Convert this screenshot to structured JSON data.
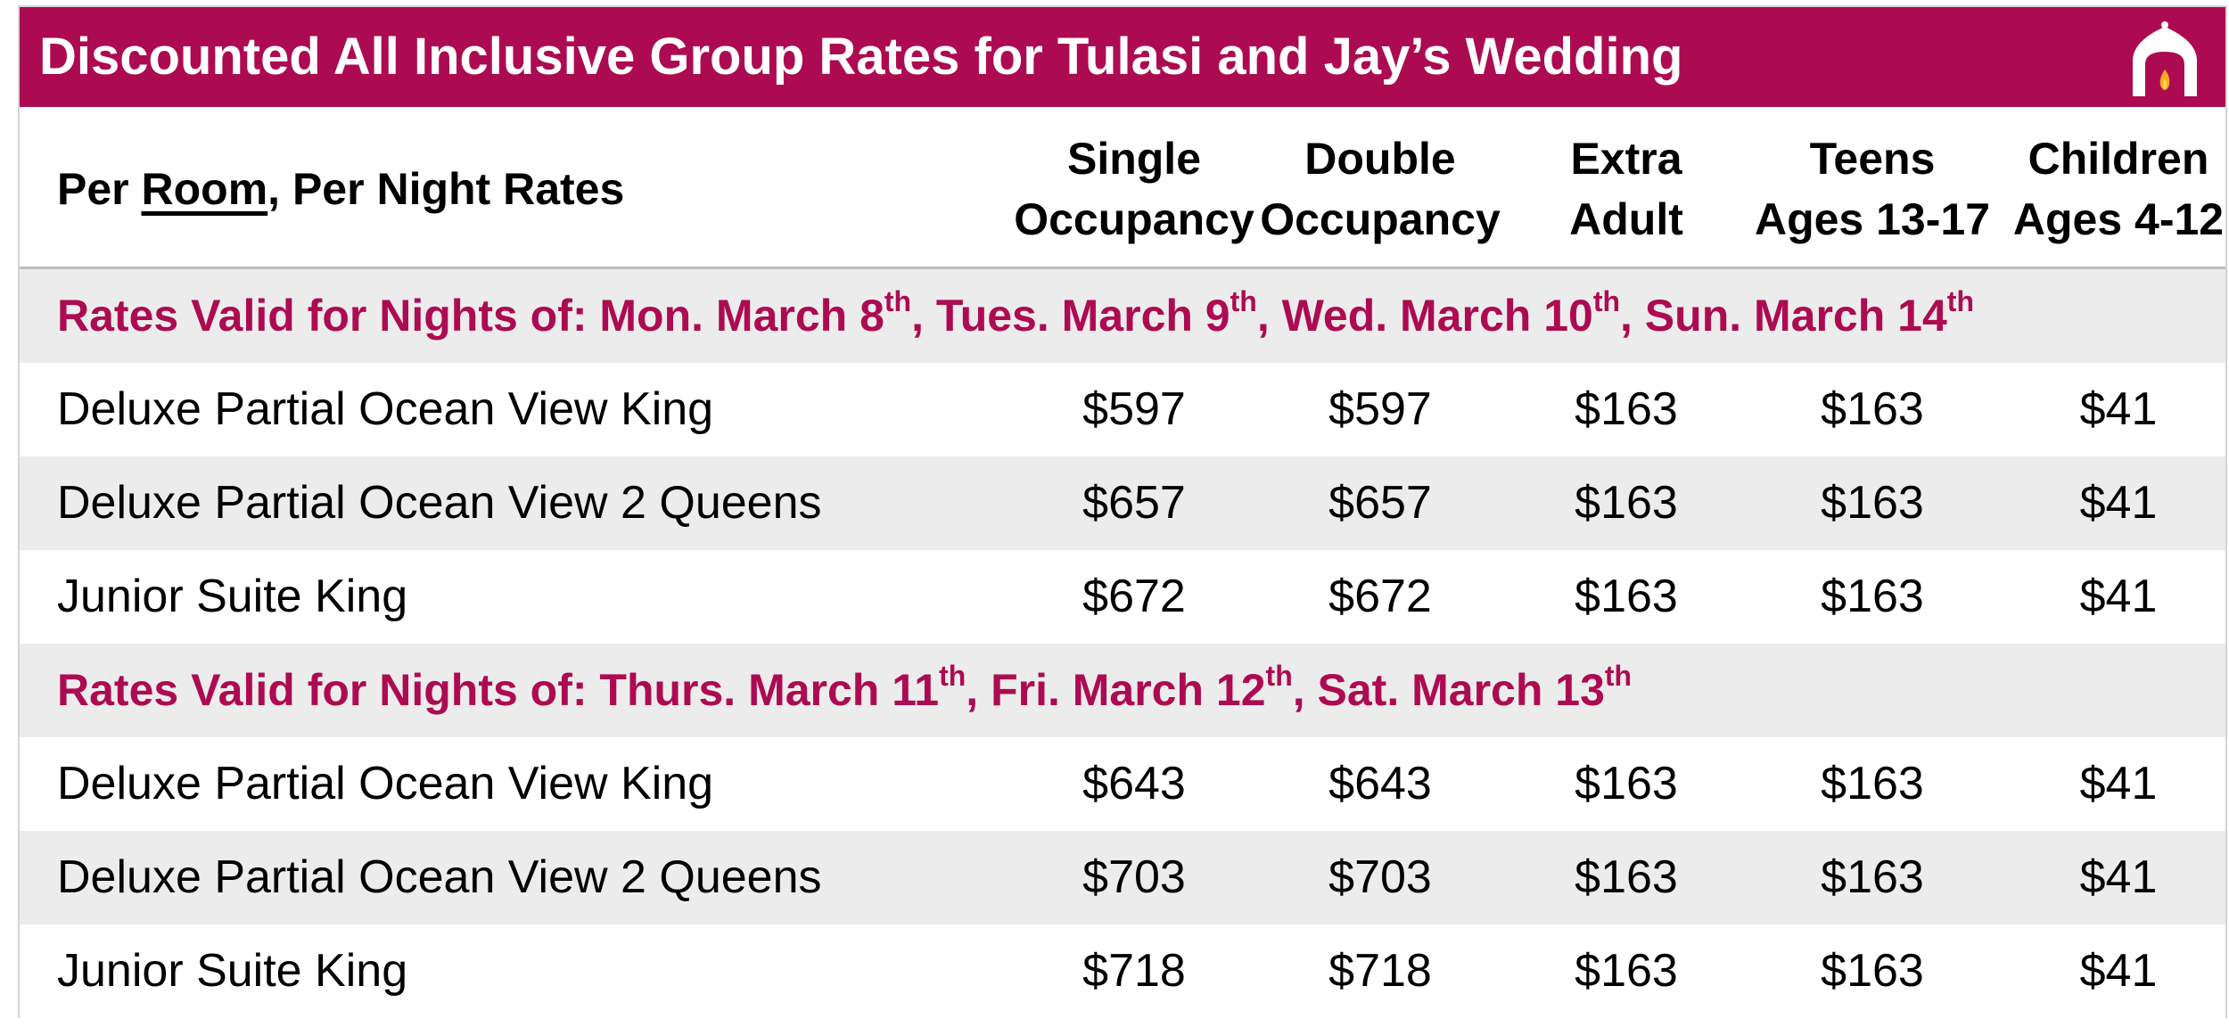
{
  "banner": {
    "title": "Discounted All Inclusive Group Rates for Tulasi and Jay’s Wedding",
    "color": "#ad0b51",
    "logo_icon": "arch-flame-logo-icon"
  },
  "header": {
    "label_prefix": "Per ",
    "label_underlined": "Room",
    "label_suffix": ", Per Night Rates",
    "columns": [
      {
        "line1": "Single",
        "line2": "Occupancy"
      },
      {
        "line1": "Double",
        "line2": "Occupancy"
      },
      {
        "line1": "Extra",
        "line2": "Adult"
      },
      {
        "line1": "Teens",
        "line2": "Ages 13-17"
      },
      {
        "line1": "Children",
        "line2": "Ages 4-12"
      }
    ]
  },
  "sections": [
    {
      "parts": [
        {
          "t": "Rates Valid for Nights of: Mon. March 8"
        },
        {
          "s": "th"
        },
        {
          "t": ", Tues. March 9"
        },
        {
          "s": "th"
        },
        {
          "t": ", Wed. March 10"
        },
        {
          "s": "th"
        },
        {
          "t": ", Sun. March 14"
        },
        {
          "s": "th"
        }
      ],
      "rows": [
        {
          "room": "Deluxe Partial Ocean View King",
          "values": [
            "$597",
            "$597",
            "$163",
            "$163",
            "$41"
          ]
        },
        {
          "room": "Deluxe Partial Ocean View 2 Queens",
          "values": [
            "$657",
            "$657",
            "$163",
            "$163",
            "$41"
          ]
        },
        {
          "room": "Junior Suite King",
          "values": [
            "$672",
            "$672",
            "$163",
            "$163",
            "$41"
          ]
        }
      ]
    },
    {
      "parts": [
        {
          "t": "Rates Valid for Nights of: Thurs. March 11"
        },
        {
          "s": "th"
        },
        {
          "t": ", Fri. March 12"
        },
        {
          "s": "th"
        },
        {
          "t": ", Sat. March 13"
        },
        {
          "s": "th"
        }
      ],
      "rows": [
        {
          "room": "Deluxe Partial Ocean View King",
          "values": [
            "$643",
            "$643",
            "$163",
            "$163",
            "$41"
          ]
        },
        {
          "room": "Deluxe Partial Ocean View 2 Queens",
          "values": [
            "$703",
            "$703",
            "$163",
            "$163",
            "$41"
          ]
        },
        {
          "room": "Junior Suite King",
          "values": [
            "$718",
            "$718",
            "$163",
            "$163",
            "$41"
          ]
        }
      ]
    }
  ]
}
